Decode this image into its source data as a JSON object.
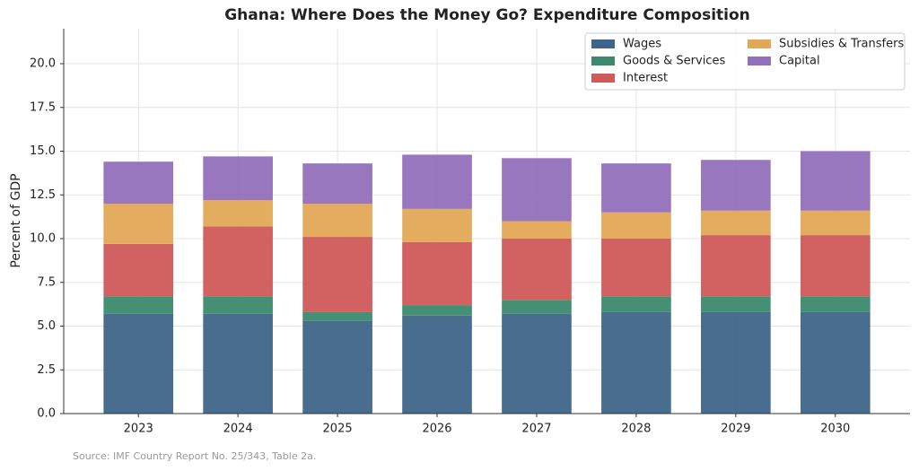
{
  "chart_data": {
    "type": "stacked_bar",
    "title": "Ghana: Where Does the Money Go? Expenditure Composition",
    "ylabel": "Percent of GDP",
    "source": "Source: IMF Country Report No. 25/343, Table 2a.",
    "categories": [
      "2023",
      "2024",
      "2025",
      "2026",
      "2027",
      "2028",
      "2029",
      "2030"
    ],
    "series": [
      {
        "name": "Wages",
        "color": "#3e6589",
        "values": [
          5.7,
          5.7,
          5.3,
          5.6,
          5.7,
          5.8,
          5.8,
          5.8
        ]
      },
      {
        "name": "Goods & Services",
        "color": "#3b8a6e",
        "values": [
          1.0,
          1.0,
          0.5,
          0.6,
          0.8,
          0.9,
          0.9,
          0.9
        ]
      },
      {
        "name": "Interest",
        "color": "#cf5a59",
        "values": [
          3.0,
          4.0,
          4.3,
          3.6,
          3.5,
          3.3,
          3.5,
          3.5
        ]
      },
      {
        "name": "Subsidies & Transfers",
        "color": "#e3a855",
        "values": [
          2.3,
          1.5,
          1.9,
          1.9,
          1.0,
          1.5,
          1.4,
          1.4
        ]
      },
      {
        "name": "Capital",
        "color": "#9370bb",
        "values": [
          2.4,
          2.5,
          2.3,
          3.1,
          3.6,
          2.8,
          2.9,
          3.4
        ]
      }
    ],
    "ylim": [
      0,
      22
    ],
    "yticks": [
      {
        "value": 0,
        "label": "0.0"
      },
      2.5,
      {
        "value": 5,
        "label": "5.0"
      },
      7.5,
      {
        "value": 10,
        "label": "10.0"
      },
      12.5,
      {
        "value": 15,
        "label": "15.0"
      },
      17.5,
      {
        "value": 20,
        "label": "20.0"
      }
    ],
    "grid": true,
    "legend": "upper right"
  }
}
